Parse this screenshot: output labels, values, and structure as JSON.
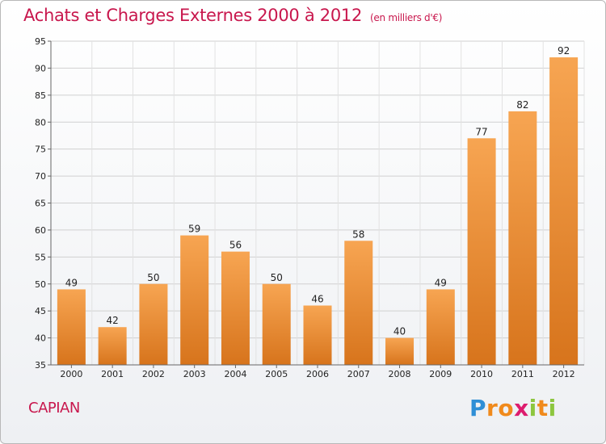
{
  "chart_data": {
    "type": "bar",
    "title": "Achats et Charges Externes 2000 à 2012",
    "subtitle": "(en milliers d'€)",
    "categories": [
      "2000",
      "2001",
      "2002",
      "2003",
      "2004",
      "2005",
      "2006",
      "2007",
      "2008",
      "2009",
      "2010",
      "2011",
      "2012"
    ],
    "values": [
      49,
      42,
      50,
      59,
      56,
      50,
      46,
      58,
      40,
      49,
      77,
      82,
      92
    ],
    "ylim": [
      35,
      95
    ],
    "yticks": [
      35,
      40,
      45,
      50,
      55,
      60,
      65,
      70,
      75,
      80,
      85,
      90,
      95
    ],
    "grid": true,
    "legend": "none",
    "colors": {
      "bar_top": "#f7a552",
      "bar_bottom": "#d7741c",
      "title": "#c8174d"
    }
  },
  "footer": {
    "commune": "CAPIAN",
    "logo_letters": [
      "P",
      "r",
      "o",
      "x",
      "i",
      "t",
      "i"
    ],
    "logo_colors": [
      "#2f8fd6",
      "#f08a1c",
      "#f08a1c",
      "#dd1c6e",
      "#8dc63f",
      "#f08a1c",
      "#8dc63f"
    ]
  }
}
